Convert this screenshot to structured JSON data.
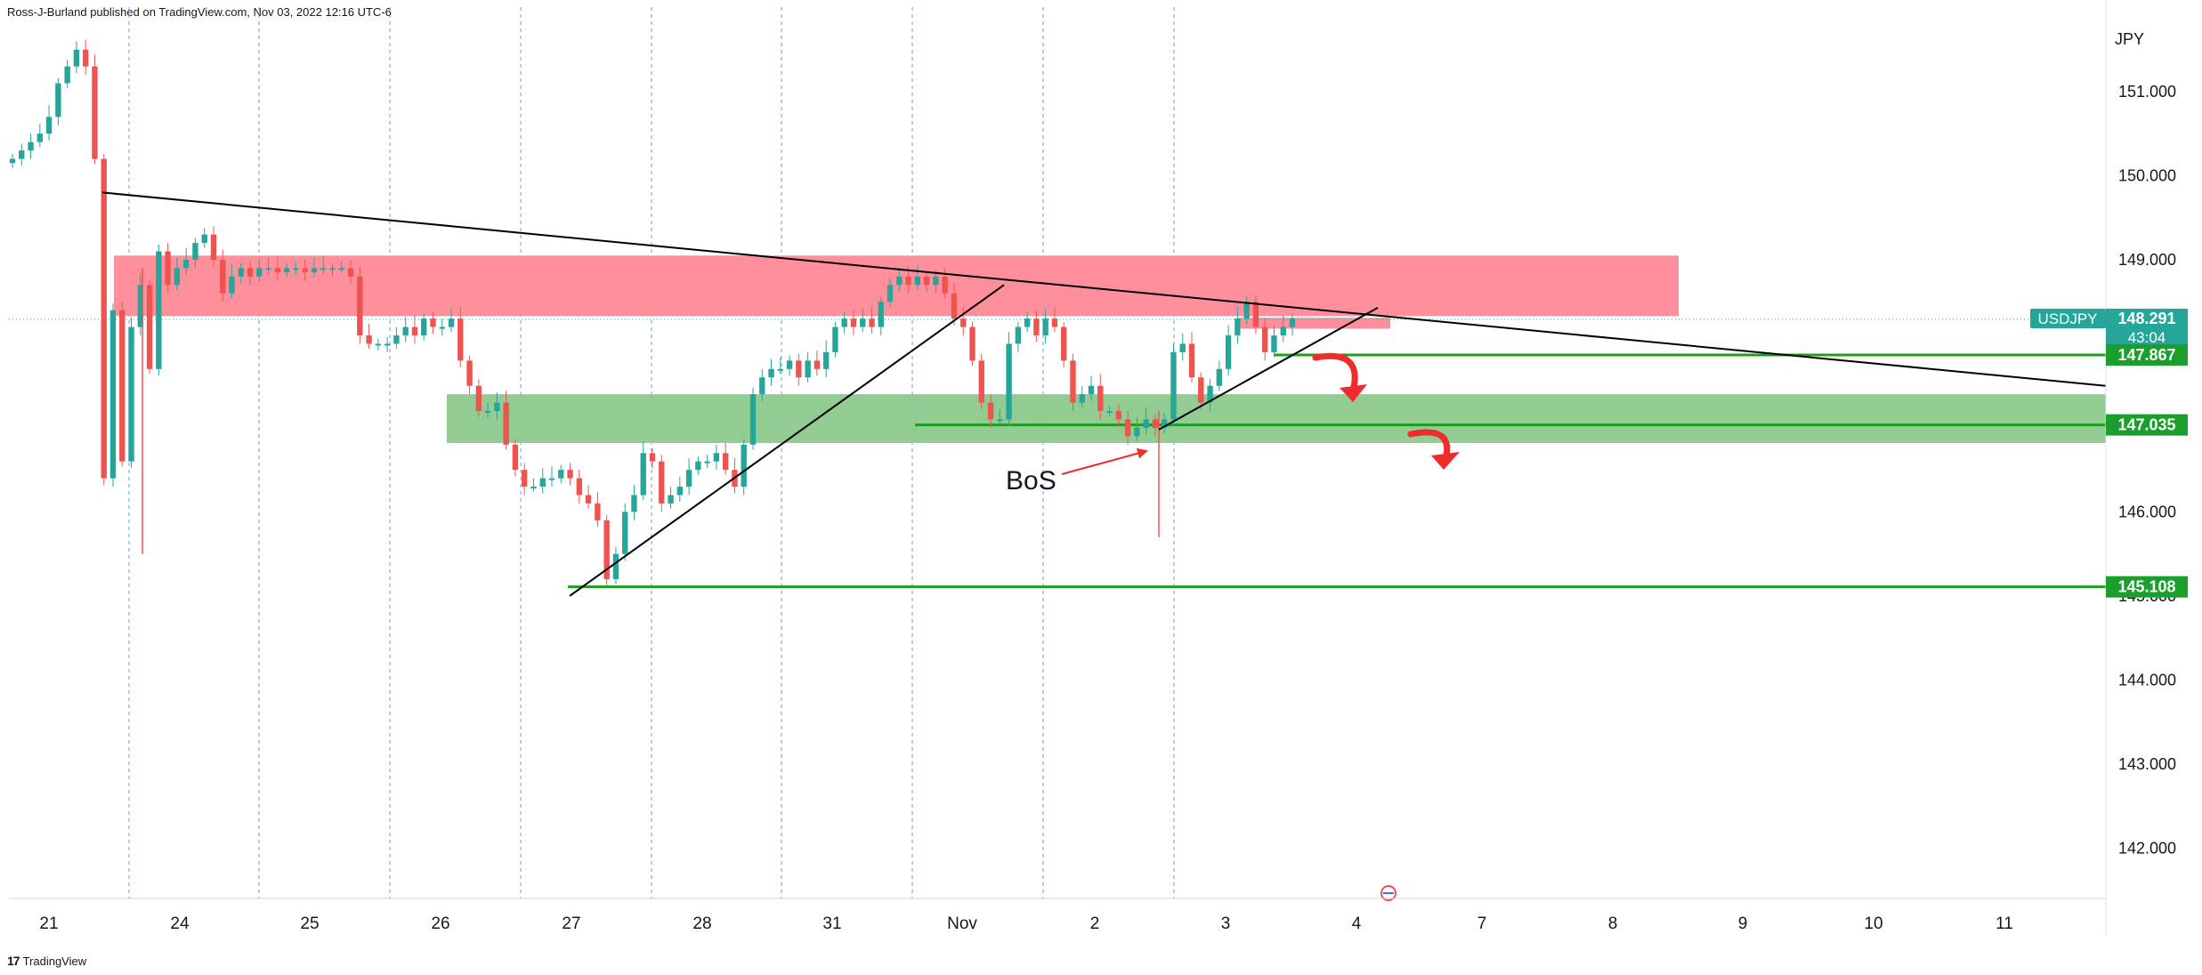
{
  "header": {
    "publisher": "Ross-J-Burland published on TradingView.com, Nov 03, 2022 12:16 UTC-6"
  },
  "footer": {
    "logo_mark": "17",
    "brand": "TradingView"
  },
  "colors": {
    "up": "#26a69a",
    "down": "#ef5350",
    "supply_zone": "#ff8a96",
    "demand_zone": "#8cc98c",
    "green_line": "#1e9e1e",
    "trendline": "#000000",
    "grid_vline": "#4a90e2",
    "price_tag": "#26a69a",
    "level_tag": "#1b9e2b"
  },
  "chart_data": {
    "type": "candlestick",
    "symbol": "USDJPY",
    "currency_label": "JPY",
    "ylim": [
      141.4,
      151.9
    ],
    "y_ticks": [
      "151.000",
      "150.000",
      "149.000",
      "148.000",
      "147.000",
      "146.000",
      "145.000",
      "144.000",
      "143.000",
      "142.000"
    ],
    "y_tick_values": [
      151,
      150,
      149,
      148,
      147,
      146,
      145,
      144,
      143,
      142
    ],
    "x_ticks": [
      "21",
      "24",
      "25",
      "26",
      "27",
      "28",
      "31",
      "Nov",
      "2",
      "3",
      "4",
      "7",
      "8",
      "9",
      "10",
      "11"
    ],
    "last_price": {
      "label": "USDJPY",
      "value": "148.291",
      "countdown": "43:04"
    },
    "levels": [
      {
        "value": 147.867,
        "label": "147.867"
      },
      {
        "value": 147.035,
        "label": "147.035"
      },
      {
        "value": 145.108,
        "label": "145.108"
      }
    ],
    "supply_zone": {
      "top": 149.05,
      "bottom": 148.33
    },
    "small_supply_zone": {
      "top": 148.31,
      "bottom": 148.18
    },
    "demand_zone": {
      "top": 147.4,
      "bottom": 146.82
    },
    "annotation": {
      "text": "BoS"
    },
    "close_path": [
      150.2,
      150.3,
      150.4,
      150.5,
      150.7,
      151.1,
      151.3,
      151.5,
      151.3,
      150.2,
      146.4,
      148.4,
      146.6,
      148.2,
      148.7,
      147.7,
      149.1,
      148.7,
      148.9,
      149.0,
      149.2,
      149.3,
      149.0,
      148.6,
      148.8,
      148.9,
      148.8,
      148.9,
      148.9,
      148.85,
      148.9,
      148.9,
      148.85,
      148.9,
      148.9,
      148.9,
      148.9,
      148.8,
      148.1,
      148.0,
      148.0,
      148.0,
      148.1,
      148.2,
      148.1,
      148.3,
      148.2,
      148.2,
      148.3,
      147.8,
      147.5,
      147.2,
      147.2,
      147.3,
      146.8,
      146.5,
      146.3,
      146.3,
      146.4,
      146.4,
      146.5,
      146.4,
      146.2,
      146.1,
      145.9,
      145.2,
      145.5,
      146.0,
      146.2,
      146.7,
      146.6,
      146.1,
      146.2,
      146.3,
      146.5,
      146.6,
      146.6,
      146.7,
      146.5,
      146.3,
      146.8,
      147.4,
      147.6,
      147.7,
      147.7,
      147.8,
      147.6,
      147.8,
      147.7,
      147.9,
      148.2,
      148.3,
      148.2,
      148.3,
      148.2,
      148.5,
      148.7,
      148.8,
      148.7,
      148.8,
      148.7,
      148.8,
      148.6,
      148.3,
      148.2,
      147.8,
      147.3,
      147.1,
      147.1,
      148.0,
      148.2,
      148.3,
      148.1,
      148.3,
      148.2,
      147.8,
      147.3,
      147.4,
      147.5,
      147.2,
      147.2,
      147.1,
      146.9,
      147.0,
      147.1,
      147.0,
      147.1,
      147.9,
      148.0,
      147.6,
      147.3,
      147.5,
      147.7,
      148.1,
      148.3,
      148.5,
      148.2,
      147.9,
      148.1,
      148.2,
      148.3
    ]
  }
}
